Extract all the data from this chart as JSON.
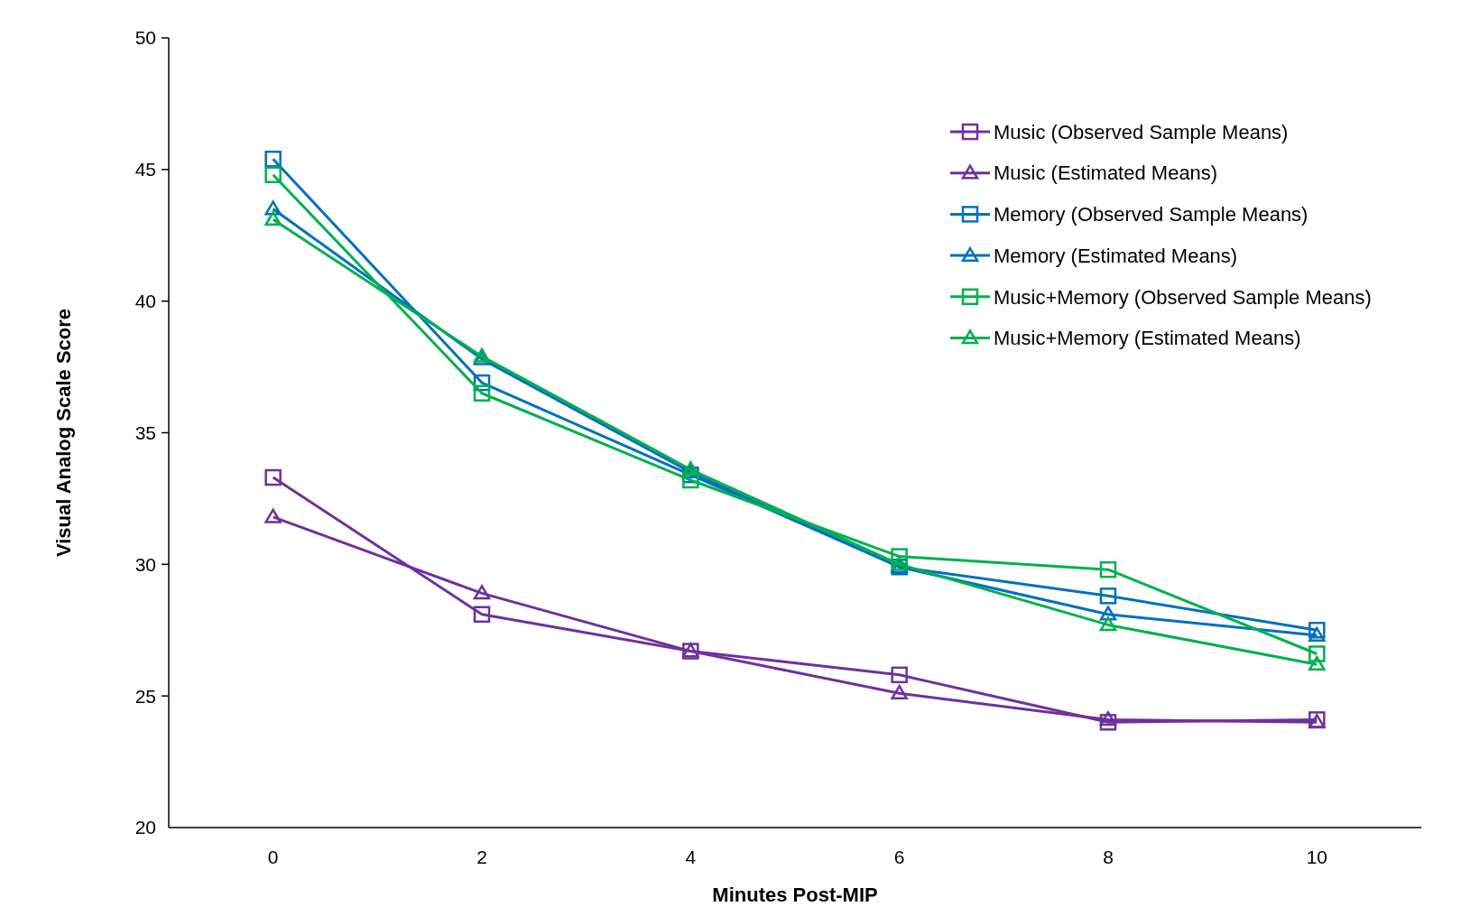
{
  "chart_data": {
    "type": "line",
    "xlabel": "Minutes Post-MIP",
    "ylabel": "Visual Analog Scale Score",
    "x": [
      0,
      2,
      4,
      6,
      8,
      10
    ],
    "xlim": [
      -1,
      11
    ],
    "xticks": [
      0,
      2,
      4,
      6,
      8,
      10
    ],
    "ylim": [
      20,
      50
    ],
    "yticks": [
      20,
      25,
      30,
      35,
      40,
      45,
      50
    ],
    "grid": false,
    "legend": "top right",
    "line_style": "solid",
    "series": [
      {
        "name": "Music (Observed Sample Means)",
        "color": "#7030a0",
        "marker": "square",
        "values": [
          33.3,
          28.1,
          26.7,
          25.8,
          24.0,
          24.1
        ]
      },
      {
        "name": "Music (Estimated Means)",
        "color": "#7030a0",
        "marker": "triangle",
        "values": [
          31.8,
          28.9,
          26.7,
          25.1,
          24.1,
          24.0
        ]
      },
      {
        "name": "Memory (Observed Sample Means)",
        "color": "#0070c0",
        "marker": "square",
        "values": [
          45.4,
          36.9,
          33.4,
          29.9,
          28.8,
          27.5
        ]
      },
      {
        "name": "Memory (Estimated Means)",
        "color": "#0070c0",
        "marker": "triangle",
        "values": [
          43.5,
          37.8,
          33.5,
          29.9,
          28.1,
          27.3
        ]
      },
      {
        "name": "Music+Memory (Observed Sample Means)",
        "color": "#00b050",
        "marker": "square",
        "values": [
          44.8,
          36.5,
          33.2,
          30.3,
          29.8,
          26.6
        ]
      },
      {
        "name": "Music+Memory (Estimated Means)",
        "color": "#00b050",
        "marker": "triangle",
        "values": [
          43.1,
          37.9,
          33.6,
          30.0,
          27.7,
          26.2
        ]
      }
    ]
  }
}
